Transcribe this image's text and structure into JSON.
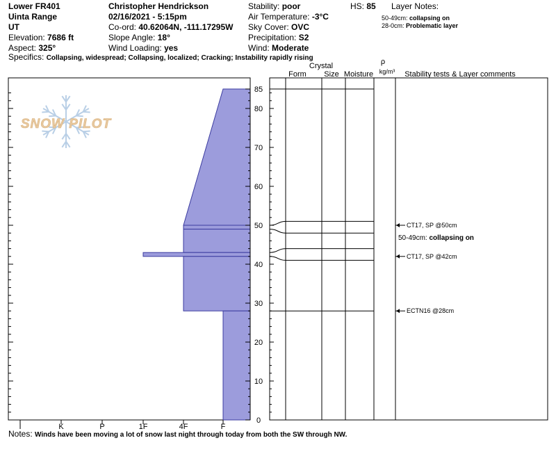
{
  "header": {
    "col1": [
      {
        "label": "Lower FR401",
        "value": ""
      },
      {
        "label": "Uinta Range",
        "value": ""
      },
      {
        "label": "UT",
        "value": ""
      },
      {
        "label": "Elevation: ",
        "value": "7686 ft"
      },
      {
        "label": "Aspect: ",
        "value": "325°"
      }
    ],
    "col2": [
      {
        "label": "Christopher Hendrickson",
        "value": ""
      },
      {
        "label": "02/16/2021 - 5:15pm",
        "value": ""
      },
      {
        "label": "Co-ord: ",
        "value": "40.62064N, -111.17295W"
      },
      {
        "label": "Slope Angle: ",
        "value": "18°"
      },
      {
        "label": "Wind Loading: ",
        "value": "yes"
      }
    ],
    "col3": [
      {
        "label": "Stability: ",
        "value": "poor"
      },
      {
        "label": "Air Temperature: ",
        "value": "-3°C"
      },
      {
        "label": "Sky Cover: ",
        "value": "OVC"
      },
      {
        "label": "Precipitation: ",
        "value": "S2"
      },
      {
        "label": "Wind: ",
        "value": "Moderate"
      }
    ],
    "hs_label": "HS: ",
    "hs_value": "85",
    "layer_notes_title": "Layer Notes:",
    "layer_notes": [
      {
        "range": "50-49cm: ",
        "note": "collapsing on"
      },
      {
        "range": "28-0cm: ",
        "note": "Problematic layer"
      }
    ],
    "specifics_label": "Specifics: ",
    "specifics_value": "Collapsing, widespread;  Collapsing, localized;  Cracking;  Instability rapidly rising"
  },
  "logo_text": "SNOW PILOT",
  "notes_label": "Notes: ",
  "notes_value": "Winds have been moving a lot of snow last night through today from both the SW through NW.",
  "colors": {
    "hardness_fill": "#9c9cdc",
    "hardness_stroke": "#3c3ca0",
    "logo_text": "#e8c9a0",
    "logo_flake": "#b9cfe6"
  },
  "chart_data": {
    "type": "snow-profile",
    "hs": 85,
    "y_ticks": [
      85,
      80,
      70,
      60,
      50,
      40,
      30,
      20,
      10,
      0
    ],
    "hardness_labels": [
      "I",
      "K",
      "P",
      "1F",
      "4F",
      "F"
    ],
    "hardness_profile": [
      {
        "top": 85,
        "bottom": 50,
        "hardness_top": "F",
        "hardness_bottom": "4F"
      },
      {
        "top": 50,
        "bottom": 49,
        "hardness": "4F"
      },
      {
        "top": 49,
        "bottom": 43,
        "hardness": "4F"
      },
      {
        "top": 43,
        "bottom": 42,
        "hardness": "1F"
      },
      {
        "top": 42,
        "bottom": 28,
        "hardness": "4F"
      },
      {
        "top": 28,
        "bottom": 0,
        "hardness": "F"
      }
    ],
    "table_headers": {
      "form": "Form",
      "crystal": "Crystal",
      "size": "Size",
      "moisture": "Moisture",
      "rho": "ρ",
      "density_unit": "kg/m³",
      "comments": "Stability tests & Layer comments"
    },
    "layer_boundaries": [
      {
        "depth": 85,
        "right_y": 85
      },
      {
        "depth": 50,
        "right_y": 51
      },
      {
        "depth": 49,
        "right_y": 48
      },
      {
        "depth": 43,
        "right_y": 44
      },
      {
        "depth": 42,
        "right_y": 41
      },
      {
        "depth": 28,
        "right_y": 28
      }
    ],
    "comments": [
      {
        "depth": 50,
        "text": "CT17, SP @50cm",
        "arrow": true
      },
      {
        "depth": 47,
        "text": "50-49cm: ",
        "bold": "collapsing on",
        "arrow": false
      },
      {
        "depth": 42,
        "text": "CT17, SP @42cm",
        "arrow": true
      },
      {
        "depth": 28,
        "text": "ECTN16 @28cm",
        "arrow": true
      }
    ]
  }
}
